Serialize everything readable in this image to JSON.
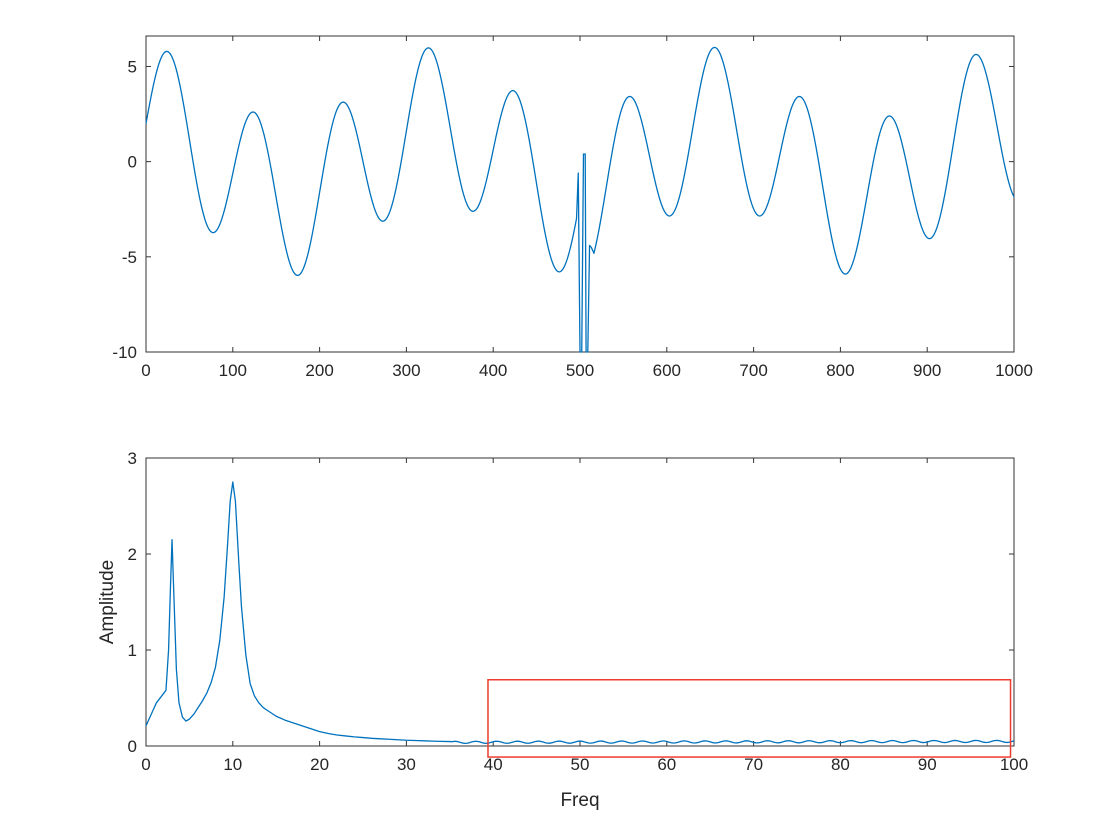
{
  "figure": {
    "background": "#ffffff",
    "axis_color": "#333333",
    "tick_label_color": "#262626",
    "series_color": "#0072BD",
    "annotation_color": "#ed3b2f"
  },
  "chart_data": [
    {
      "id": "time-domain-signal",
      "type": "line",
      "title": "",
      "xlabel": "",
      "ylabel": "",
      "xlim": [
        0,
        1000
      ],
      "ylim": [
        -10,
        6.6
      ],
      "xticks": [
        0,
        100,
        200,
        300,
        400,
        500,
        600,
        700,
        800,
        900,
        1000
      ],
      "yticks": [
        -10,
        -5,
        0,
        5
      ],
      "grid": false,
      "line_color": "#0072BD",
      "series_model": {
        "description": "Sum of two sinusoids (2*cos at 3 cycles/span + 4*sin at 10 cycles/span) with a sharp transient glitch near t=500 dropping to -10",
        "span": 1000,
        "segments": [
          {
            "t_start": 0,
            "t_end": 496,
            "components": [
              {
                "fn": "cos",
                "amplitude": 2,
                "cycles": 3,
                "phase": 0
              },
              {
                "fn": "sin",
                "amplitude": 4,
                "cycles": 10,
                "phase": 0
              }
            ]
          },
          {
            "t_start": 516,
            "t_end": 1000,
            "components": [
              {
                "fn": "cos",
                "amplitude": 2,
                "cycles": 3,
                "phase": 0.22
              },
              {
                "fn": "sin",
                "amplitude": 4,
                "cycles": 10,
                "phase": -1.885
              }
            ]
          }
        ],
        "glitch_points": [
          [
            496,
            -3.0
          ],
          [
            498,
            -0.6
          ],
          [
            500,
            -10
          ],
          [
            502,
            -10
          ],
          [
            504,
            0.4
          ],
          [
            506,
            0.4
          ],
          [
            507,
            -10
          ],
          [
            509,
            -10
          ],
          [
            511,
            -4.4
          ],
          [
            513,
            -4.5
          ],
          [
            516,
            -4.8
          ]
        ],
        "approx_extrema": {
          "max": 5.78,
          "min_clipped": -10,
          "start_value": 2
        }
      }
    },
    {
      "id": "amplitude-spectrum",
      "type": "line",
      "title": "",
      "xlabel": "Freq",
      "ylabel": "Amplitude",
      "xlim": [
        0,
        100
      ],
      "ylim": [
        0,
        3
      ],
      "xticks": [
        0,
        10,
        20,
        30,
        40,
        50,
        60,
        70,
        80,
        90,
        100
      ],
      "yticks": [
        0,
        1,
        2,
        3
      ],
      "grid": false,
      "line_color": "#0072BD",
      "peaks": [
        {
          "freq": 3,
          "amplitude": 2.15
        },
        {
          "freq": 10,
          "amplitude": 2.75
        }
      ],
      "points": [
        [
          0,
          0.21
        ],
        [
          0.7,
          0.35
        ],
        [
          1.2,
          0.45
        ],
        [
          1.8,
          0.52
        ],
        [
          2.3,
          0.58
        ],
        [
          2.6,
          1.0
        ],
        [
          2.8,
          1.6
        ],
        [
          3,
          2.15
        ],
        [
          3.2,
          1.6
        ],
        [
          3.5,
          0.8
        ],
        [
          3.8,
          0.45
        ],
        [
          4.2,
          0.3
        ],
        [
          4.6,
          0.26
        ],
        [
          5,
          0.28
        ],
        [
          5.5,
          0.33
        ],
        [
          6,
          0.4
        ],
        [
          6.5,
          0.47
        ],
        [
          7,
          0.55
        ],
        [
          7.5,
          0.66
        ],
        [
          8,
          0.82
        ],
        [
          8.5,
          1.1
        ],
        [
          9,
          1.55
        ],
        [
          9.4,
          2.1
        ],
        [
          9.7,
          2.55
        ],
        [
          10,
          2.75
        ],
        [
          10.3,
          2.55
        ],
        [
          10.7,
          1.9
        ],
        [
          11,
          1.45
        ],
        [
          11.5,
          0.95
        ],
        [
          12,
          0.65
        ],
        [
          12.5,
          0.52
        ],
        [
          13,
          0.45
        ],
        [
          13.5,
          0.4
        ],
        [
          14,
          0.37
        ],
        [
          14.5,
          0.34
        ],
        [
          15,
          0.31
        ],
        [
          16,
          0.27
        ],
        [
          17,
          0.24
        ],
        [
          18,
          0.21
        ],
        [
          19,
          0.18
        ],
        [
          20,
          0.15
        ],
        [
          21,
          0.13
        ],
        [
          22,
          0.115
        ],
        [
          23,
          0.105
        ],
        [
          24,
          0.095
        ],
        [
          25,
          0.088
        ],
        [
          26,
          0.08
        ],
        [
          27,
          0.075
        ],
        [
          28,
          0.07
        ],
        [
          29,
          0.065
        ],
        [
          30,
          0.06
        ],
        [
          31,
          0.057
        ],
        [
          32,
          0.054
        ],
        [
          33,
          0.051
        ],
        [
          34,
          0.048
        ],
        [
          35,
          0.046
        ]
      ],
      "tail_ripple": {
        "from": 35,
        "to": 100,
        "base": 0.038,
        "drift": 0.01,
        "amplitude": 0.011,
        "wavelength": 2.4
      },
      "annotation_rect": {
        "x0": 39.4,
        "x1": 99.6,
        "y0": -0.115,
        "y1": 0.69,
        "color": "#ed3b2f"
      }
    }
  ]
}
